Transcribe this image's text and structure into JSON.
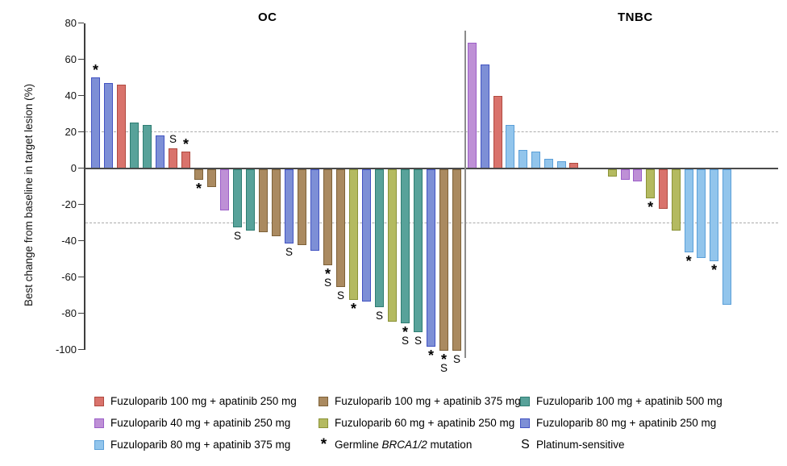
{
  "y_axis": {
    "label": "Best change from baseline in target lesion (%)",
    "ticks": [
      80,
      60,
      40,
      20,
      0,
      -20,
      -40,
      -60,
      -80,
      -100
    ],
    "reference_lines": [
      20,
      -30
    ]
  },
  "colors": {
    "red": {
      "fill": "#D9736C",
      "border": "#B04A40"
    },
    "purple": {
      "fill": "#BE90D6",
      "border": "#9C5FC8"
    },
    "lightblue": {
      "fill": "#92C5EC",
      "border": "#5B9FD8"
    },
    "brown": {
      "fill": "#AA8A60",
      "border": "#7D6138"
    },
    "olive": {
      "fill": "#B4BA60",
      "border": "#8B9337"
    },
    "teal": {
      "fill": "#58A29A",
      "border": "#2E7D72"
    },
    "royal": {
      "fill": "#7D8FD6",
      "border": "#4253C2"
    }
  },
  "chart_data": {
    "type": "bar",
    "title": "",
    "xlabel": "",
    "ylabel": "Best change from baseline in target lesion (%)",
    "ylim": [
      -100,
      80
    ],
    "grid": false,
    "reference_lines": [
      20,
      -30
    ],
    "annotation_key": {
      "*": "Germline BRCA1/2 mutation",
      "S": "Platinum-sensitive"
    },
    "groups": [
      {
        "name": "OC",
        "bars": [
          {
            "value": 50,
            "color": "royal",
            "mark": "*"
          },
          {
            "value": 47,
            "color": "royal",
            "mark": ""
          },
          {
            "value": 46,
            "color": "red",
            "mark": ""
          },
          {
            "value": 25,
            "color": "teal",
            "mark": ""
          },
          {
            "value": 24,
            "color": "teal",
            "mark": ""
          },
          {
            "value": 18,
            "color": "royal",
            "mark": ""
          },
          {
            "value": 11,
            "color": "red",
            "mark": "S"
          },
          {
            "value": 9,
            "color": "red",
            "mark": "*"
          },
          {
            "value": -6,
            "color": "brown",
            "mark": "*"
          },
          {
            "value": -10,
            "color": "brown",
            "mark": ""
          },
          {
            "value": -23,
            "color": "purple",
            "mark": ""
          },
          {
            "value": -32,
            "color": "teal",
            "mark": "S"
          },
          {
            "value": -34,
            "color": "teal",
            "mark": ""
          },
          {
            "value": -35,
            "color": "brown",
            "mark": ""
          },
          {
            "value": -37,
            "color": "brown",
            "mark": ""
          },
          {
            "value": -41,
            "color": "royal",
            "mark": "S"
          },
          {
            "value": -42,
            "color": "brown",
            "mark": ""
          },
          {
            "value": -45,
            "color": "royal",
            "mark": ""
          },
          {
            "value": -53,
            "color": "brown",
            "mark": "*S"
          },
          {
            "value": -65,
            "color": "brown",
            "mark": "S"
          },
          {
            "value": -72,
            "color": "olive",
            "mark": "*"
          },
          {
            "value": -73,
            "color": "royal",
            "mark": ""
          },
          {
            "value": -76,
            "color": "teal",
            "mark": "S"
          },
          {
            "value": -84,
            "color": "olive",
            "mark": ""
          },
          {
            "value": -85,
            "color": "teal",
            "mark": "*S"
          },
          {
            "value": -90,
            "color": "teal",
            "mark": "S"
          },
          {
            "value": -98,
            "color": "royal",
            "mark": "*"
          },
          {
            "value": -100,
            "color": "brown",
            "mark": "*S"
          },
          {
            "value": -100,
            "color": "brown",
            "mark": "S"
          }
        ]
      },
      {
        "name": "TNBC",
        "bars": [
          {
            "value": 69,
            "color": "purple",
            "mark": ""
          },
          {
            "value": 57,
            "color": "royal",
            "mark": ""
          },
          {
            "value": 40,
            "color": "red",
            "mark": ""
          },
          {
            "value": 24,
            "color": "lightblue",
            "mark": ""
          },
          {
            "value": 10,
            "color": "lightblue",
            "mark": ""
          },
          {
            "value": 9,
            "color": "lightblue",
            "mark": ""
          },
          {
            "value": 5,
            "color": "lightblue",
            "mark": ""
          },
          {
            "value": 4,
            "color": "lightblue",
            "mark": ""
          },
          {
            "value": 3,
            "color": "red",
            "mark": ""
          },
          {
            "value": 0,
            "color": null,
            "mark": ""
          },
          {
            "value": 0,
            "color": null,
            "mark": ""
          },
          {
            "value": -4,
            "color": "olive",
            "mark": ""
          },
          {
            "value": -6,
            "color": "purple",
            "mark": ""
          },
          {
            "value": -7,
            "color": "purple",
            "mark": ""
          },
          {
            "value": -16,
            "color": "olive",
            "mark": "*"
          },
          {
            "value": -22,
            "color": "red",
            "mark": ""
          },
          {
            "value": -34,
            "color": "olive",
            "mark": ""
          },
          {
            "value": -46,
            "color": "lightblue",
            "mark": "*"
          },
          {
            "value": -49,
            "color": "lightblue",
            "mark": ""
          },
          {
            "value": -51,
            "color": "lightblue",
            "mark": "*"
          },
          {
            "value": -75,
            "color": "lightblue",
            "mark": ""
          }
        ]
      }
    ]
  },
  "legend": {
    "items": [
      {
        "col": 0,
        "row": 0,
        "swatch": "red",
        "label": "Fuzuloparib 100 mg + apatinib 250 mg"
      },
      {
        "col": 0,
        "row": 1,
        "swatch": "purple",
        "label": "Fuzuloparib 40 mg + apatinib 250 mg"
      },
      {
        "col": 0,
        "row": 2,
        "swatch": "lightblue",
        "label": "Fuzuloparib 80 mg + apatinib 375 mg"
      },
      {
        "col": 1,
        "row": 0,
        "swatch": "brown",
        "label": "Fuzuloparib 100 mg + apatinib 375 mg"
      },
      {
        "col": 1,
        "row": 1,
        "swatch": "olive",
        "label": "Fuzuloparib 60 mg + apatinib 250 mg"
      },
      {
        "col": 1,
        "row": 2,
        "glyph": "*",
        "label_prefix": "Germline ",
        "label_italic": "BRCA1/2",
        "label_suffix": " mutation"
      },
      {
        "col": 2,
        "row": 0,
        "swatch": "teal",
        "label": "Fuzuloparib 100 mg + apatinib 500 mg"
      },
      {
        "col": 2,
        "row": 1,
        "swatch": "royal",
        "label": "Fuzuloparib 80 mg + apatinib 250 mg"
      },
      {
        "col": 2,
        "row": 2,
        "glyph": "S",
        "label": "Platinum-sensitive"
      }
    ]
  }
}
